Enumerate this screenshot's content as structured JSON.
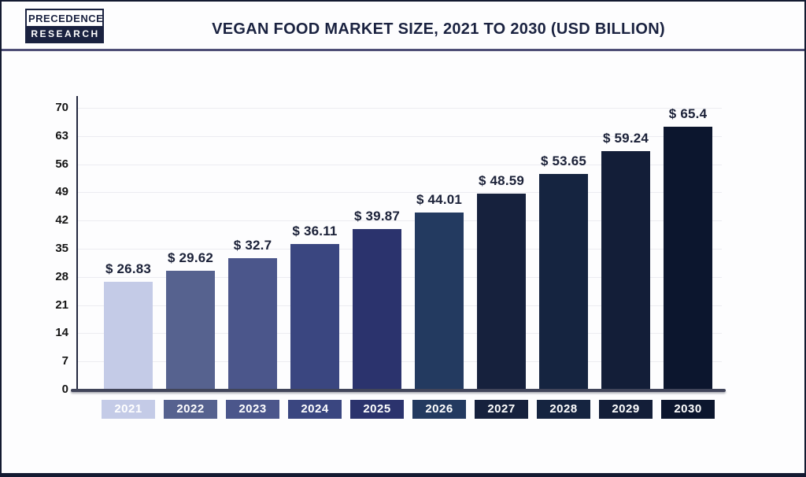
{
  "header": {
    "logo": {
      "line1": "PRECEDENCE",
      "line2": "RESEARCH"
    },
    "title": "VEGAN FOOD MARKET SIZE, 2021 TO 2030 (USD BILLION)"
  },
  "chart_data": {
    "type": "bar",
    "title": "VEGAN FOOD MARKET SIZE, 2021 TO 2030 (USD BILLION)",
    "unit": "USD Billion",
    "categories": [
      "2021",
      "2022",
      "2023",
      "2024",
      "2025",
      "2026",
      "2027",
      "2028",
      "2029",
      "2030"
    ],
    "values": [
      26.83,
      29.62,
      32.7,
      36.11,
      39.87,
      44.01,
      48.59,
      53.65,
      59.24,
      65.4
    ],
    "value_labels": [
      "$ 26.83",
      "$ 29.62",
      "$ 32.7",
      "$ 36.11",
      "$ 39.87",
      "$ 44.01",
      "$ 48.59",
      "$ 53.65",
      "$ 59.24",
      "$ 65.4"
    ],
    "bar_colors": [
      "#c4cbe7",
      "#56628f",
      "#4b568b",
      "#3a4680",
      "#2b336d",
      "#233a60",
      "#16213d",
      "#152440",
      "#131e38",
      "#0c162e"
    ],
    "y_ticks": [
      0,
      7,
      14,
      21,
      28,
      35,
      42,
      49,
      56,
      63,
      70
    ],
    "ylim": [
      0,
      70
    ],
    "xlabel": "",
    "ylabel": "",
    "grid": true,
    "legend": "none"
  },
  "colors": {
    "title_text": "#1a2240",
    "divider": "#4e4e76",
    "gridline": "#ececf1",
    "y_axis": "#23283f",
    "x_axis": "#41455a",
    "value_label_text": "#1b2138",
    "year_label_text": "#ffffff",
    "page_border": "#131a31",
    "background": "#fdfdfe"
  }
}
